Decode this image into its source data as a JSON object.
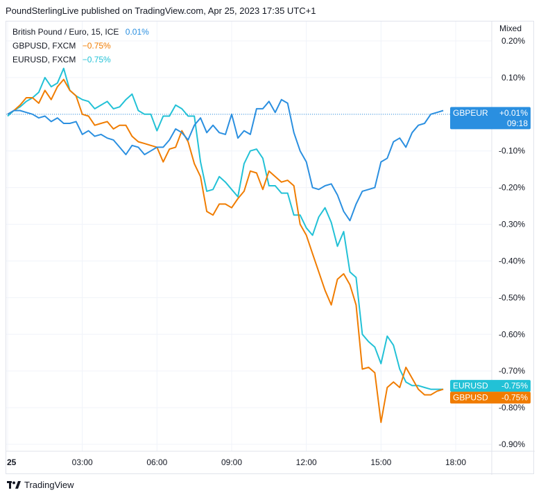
{
  "header": {
    "text": "PoundSterlingLive published on TradingView.com, Apr 25, 2023 17:35 UTC+1"
  },
  "footer": {
    "logo_icon": "tradingview-logo-icon",
    "brand": "TradingView"
  },
  "chart_data": {
    "type": "line",
    "scale_mode": "Mixed",
    "x_ticks": [
      "25",
      "03:00",
      "06:00",
      "09:00",
      "12:00",
      "15:00",
      "18:00"
    ],
    "y_ticks": [
      "0.20%",
      "0.10%",
      "-0.10%",
      "-0.20%",
      "-0.30%",
      "-0.40%",
      "-0.50%",
      "-0.60%",
      "-0.70%",
      "-0.80%",
      "-0.90%"
    ],
    "ylim": [
      -0.94,
      0.22
    ],
    "x_unit": "hours",
    "xlim": [
      0,
      19.5
    ],
    "grid": true,
    "series": [
      {
        "name": "British Pound / Euro, 15, ICE",
        "legend_value": "0.01%",
        "color": "#2a8fe0",
        "end_label": "GBPEUR",
        "end_value": "+0.01%",
        "countdown": "09:18",
        "x": [
          0,
          0.25,
          0.5,
          0.75,
          1,
          1.25,
          1.5,
          1.75,
          2,
          2.25,
          2.5,
          2.75,
          3,
          3.25,
          3.5,
          3.75,
          4,
          4.25,
          4.5,
          4.75,
          5,
          5.25,
          5.5,
          5.75,
          6,
          6.25,
          6.5,
          6.75,
          7,
          7.25,
          7.5,
          7.75,
          8,
          8.25,
          8.5,
          8.75,
          9,
          9.25,
          9.5,
          9.75,
          10,
          10.25,
          10.5,
          10.75,
          11,
          11.25,
          11.5,
          11.75,
          12,
          12.25,
          12.5,
          12.75,
          13,
          13.25,
          13.5,
          13.75,
          14,
          14.25,
          14.5,
          14.75,
          15,
          15.25,
          15.5,
          15.75,
          16,
          16.25,
          16.5,
          16.75,
          17,
          17.25,
          17.5
        ],
        "values": [
          0.0,
          0.01,
          0.01,
          0.005,
          0.0,
          -0.01,
          -0.005,
          -0.02,
          -0.01,
          -0.025,
          -0.025,
          -0.02,
          -0.055,
          -0.045,
          -0.06,
          -0.055,
          -0.065,
          -0.07,
          -0.09,
          -0.11,
          -0.085,
          -0.09,
          -0.11,
          -0.1,
          -0.09,
          -0.09,
          -0.07,
          -0.04,
          -0.05,
          -0.07,
          -0.03,
          -0.01,
          -0.05,
          -0.03,
          -0.05,
          -0.055,
          -0.0,
          -0.065,
          -0.045,
          -0.055,
          0.015,
          0.015,
          0.035,
          0.005,
          0.04,
          0.03,
          -0.05,
          -0.1,
          -0.13,
          -0.2,
          -0.205,
          -0.195,
          -0.19,
          -0.22,
          -0.265,
          -0.29,
          -0.245,
          -0.21,
          -0.205,
          -0.2,
          -0.13,
          -0.12,
          -0.075,
          -0.065,
          -0.09,
          -0.05,
          -0.03,
          -0.025,
          0.0,
          0.005,
          0.01
        ]
      },
      {
        "name": "GBPUSD, FXCM",
        "legend_value": "−0.75%",
        "color": "#f07c00",
        "end_label": "GBPUSD",
        "end_value": "-0.75%",
        "x": [
          0,
          0.25,
          0.5,
          0.75,
          1,
          1.25,
          1.5,
          1.75,
          2,
          2.25,
          2.5,
          2.75,
          3,
          3.25,
          3.5,
          3.75,
          4,
          4.25,
          4.5,
          4.75,
          5,
          5.25,
          5.5,
          5.75,
          6,
          6.25,
          6.5,
          6.75,
          7,
          7.25,
          7.5,
          7.75,
          8,
          8.25,
          8.5,
          8.75,
          9,
          9.25,
          9.5,
          9.75,
          10,
          10.25,
          10.5,
          10.75,
          11,
          11.25,
          11.5,
          11.75,
          12,
          12.25,
          12.5,
          12.75,
          13,
          13.25,
          13.5,
          13.75,
          14,
          14.25,
          14.5,
          14.75,
          15,
          15.25,
          15.5,
          15.75,
          16,
          16.25,
          16.5,
          16.75,
          17,
          17.25,
          17.5
        ],
        "values": [
          0.0,
          0.01,
          0.025,
          0.045,
          0.045,
          0.03,
          0.065,
          0.04,
          0.075,
          0.095,
          0.065,
          0.05,
          0.0,
          -0.005,
          -0.03,
          -0.025,
          -0.02,
          -0.04,
          -0.03,
          -0.03,
          -0.06,
          -0.075,
          -0.08,
          -0.085,
          -0.09,
          -0.13,
          -0.095,
          -0.09,
          -0.045,
          -0.075,
          -0.135,
          -0.17,
          -0.265,
          -0.275,
          -0.245,
          -0.245,
          -0.255,
          -0.23,
          -0.21,
          -0.155,
          -0.16,
          -0.205,
          -0.155,
          -0.17,
          -0.185,
          -0.18,
          -0.195,
          -0.3,
          -0.33,
          -0.38,
          -0.43,
          -0.48,
          -0.52,
          -0.45,
          -0.435,
          -0.465,
          -0.52,
          -0.695,
          -0.69,
          -0.705,
          -0.84,
          -0.745,
          -0.73,
          -0.745,
          -0.69,
          -0.72,
          -0.75,
          -0.765,
          -0.765,
          -0.755,
          -0.75
        ]
      },
      {
        "name": "EURUSD, FXCM",
        "legend_value": "−0.75%",
        "color": "#22c1d6",
        "end_label": "EURUSD",
        "end_value": "-0.75%",
        "x": [
          0,
          0.25,
          0.5,
          0.75,
          1,
          1.25,
          1.5,
          1.75,
          2,
          2.25,
          2.5,
          2.75,
          3,
          3.25,
          3.5,
          3.75,
          4,
          4.25,
          4.5,
          4.75,
          5,
          5.25,
          5.5,
          5.75,
          6,
          6.25,
          6.5,
          6.75,
          7,
          7.25,
          7.5,
          7.75,
          8,
          8.25,
          8.5,
          8.75,
          9,
          9.25,
          9.5,
          9.75,
          10,
          10.25,
          10.5,
          10.75,
          11,
          11.25,
          11.5,
          11.75,
          12,
          12.25,
          12.5,
          12.75,
          13,
          13.25,
          13.5,
          13.75,
          14,
          14.25,
          14.5,
          14.75,
          15,
          15.25,
          15.5,
          15.75,
          16,
          16.25,
          16.5,
          16.75,
          17,
          17.25,
          17.5
        ],
        "values": [
          -0.005,
          0.01,
          0.02,
          0.035,
          0.045,
          0.06,
          0.1,
          0.075,
          0.085,
          0.125,
          0.065,
          0.05,
          0.04,
          0.035,
          0.015,
          0.025,
          0.035,
          0.015,
          0.02,
          0.04,
          0.055,
          0.01,
          0.0,
          0.0,
          -0.045,
          -0.005,
          -0.005,
          0.025,
          0.015,
          -0.005,
          -0.005,
          -0.13,
          -0.21,
          -0.205,
          -0.17,
          -0.185,
          -0.205,
          -0.225,
          -0.135,
          -0.1,
          -0.095,
          -0.12,
          -0.195,
          -0.195,
          -0.215,
          -0.215,
          -0.275,
          -0.275,
          -0.31,
          -0.33,
          -0.28,
          -0.255,
          -0.295,
          -0.36,
          -0.32,
          -0.43,
          -0.445,
          -0.6,
          -0.62,
          -0.635,
          -0.68,
          -0.605,
          -0.63,
          -0.695,
          -0.73,
          -0.74,
          -0.74,
          -0.745,
          -0.75,
          -0.75,
          -0.75
        ]
      }
    ]
  }
}
